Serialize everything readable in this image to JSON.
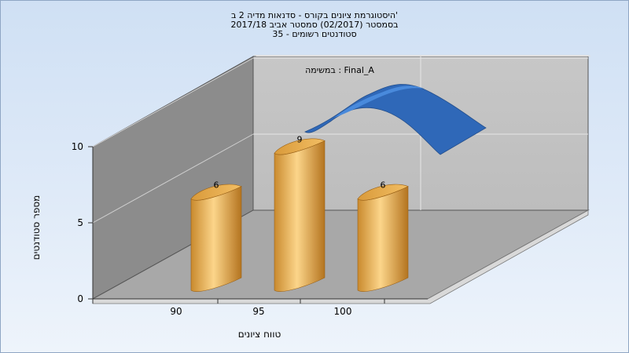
{
  "chart_data": {
    "type": "bar",
    "title_lines": [
      "היסטוגרמת ציונים בקורס - סדנאות מדיה 2 ב'",
      "בסמסטר  (02/2017)  סמסטר אביב 2017/18",
      "סטודנטים רשומים - 35"
    ],
    "xlabel": "טווח ציונים",
    "ylabel": "מספר סטודנטים",
    "categories": [
      "90",
      "95",
      "100"
    ],
    "series": [
      {
        "name": "במשימה : Final_A",
        "values": [
          6,
          9,
          6
        ]
      }
    ],
    "y_ticks": [
      0,
      5,
      10
    ],
    "ylim": [
      0,
      10
    ],
    "grid": true,
    "three_d": true,
    "colors": {
      "bar_light": "#f9d080",
      "bar_mid": "#e3a548",
      "bar_dark": "#b0701e",
      "curve": "#2f68b8",
      "curve_light": "#4d8ee0",
      "back_wall": "#c4c4c4",
      "left_wall": "#8a8a8a",
      "floor": "#a9a9a9"
    }
  }
}
